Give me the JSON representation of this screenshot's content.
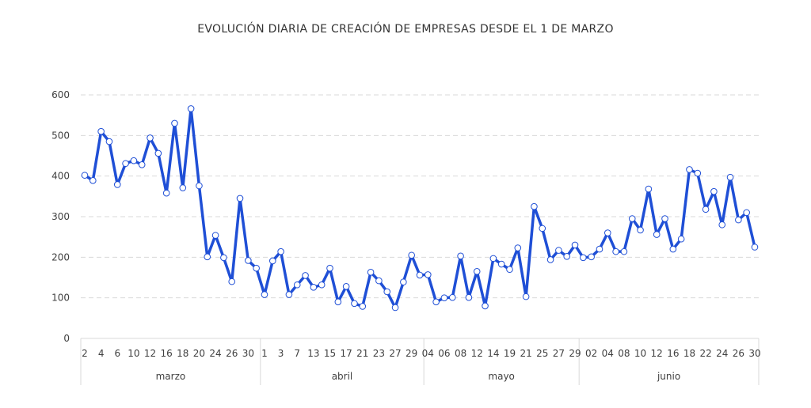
{
  "chart_data": {
    "type": "line",
    "title": "EVOLUCIÓN DIARIA DE CREACIÓN DE EMPRESAS DESDE EL 1 DE MARZO",
    "xlabel": "",
    "ylabel": "",
    "ylim": [
      0,
      600
    ],
    "yticks": [
      0,
      100,
      200,
      300,
      400,
      500,
      600
    ],
    "grid": true,
    "line_color": "#1f4fd6",
    "marker_fill": "#ffffff",
    "groups": [
      {
        "name": "marzo",
        "labels": [
          "2",
          "",
          "4",
          "",
          "6",
          "",
          "10",
          "",
          "12",
          "",
          "16",
          "",
          "18",
          "",
          "20",
          "",
          "24",
          "",
          "26",
          "",
          "30",
          ""
        ],
        "values": [
          402,
          389,
          510,
          485,
          379,
          431,
          438,
          428,
          494,
          456,
          358,
          530,
          371,
          566,
          376,
          201,
          254,
          199,
          140,
          345,
          192,
          173
        ]
      },
      {
        "name": "abril",
        "labels": [
          "1",
          "",
          "3",
          "",
          "7",
          "",
          "13",
          "",
          "15",
          "",
          "17",
          "",
          "21",
          "",
          "23",
          "",
          "27",
          "",
          "29",
          ""
        ],
        "values": [
          108,
          191,
          214,
          108,
          132,
          155,
          126,
          132,
          173,
          90,
          128,
          86,
          79,
          163,
          142,
          115,
          76,
          139,
          205,
          156
        ]
      },
      {
        "name": "mayo",
        "labels": [
          "04",
          "",
          "06",
          "",
          "08",
          "",
          "12",
          "",
          "14",
          "",
          "19",
          "",
          "21",
          "",
          "25",
          "",
          "27",
          "",
          "29"
        ],
        "values": [
          157,
          90,
          100,
          101,
          203,
          101,
          165,
          80,
          197,
          183,
          170,
          223,
          103,
          325,
          271,
          194,
          217,
          202,
          230
        ]
      },
      {
        "name": "junio",
        "labels": [
          "02",
          "",
          "04",
          "",
          "08",
          "",
          "10",
          "",
          "12",
          "",
          "16",
          "",
          "18",
          "",
          "22",
          "",
          "24",
          "",
          "26",
          "",
          "30",
          ""
        ],
        "values": [
          199,
          201,
          220,
          260,
          214,
          214,
          295,
          267,
          368,
          256,
          295,
          220,
          245,
          416,
          407,
          318,
          362,
          280,
          397,
          292,
          310,
          225
        ]
      }
    ]
  }
}
